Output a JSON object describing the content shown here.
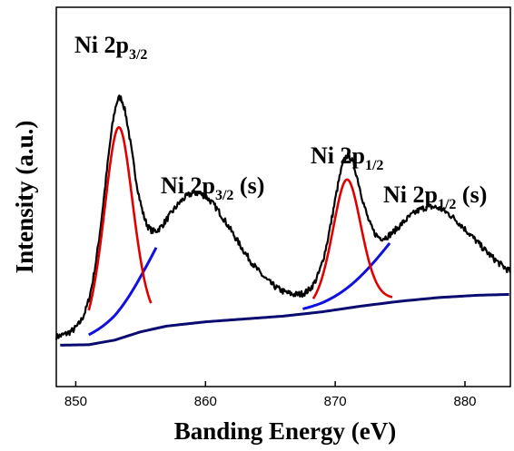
{
  "chart_data": {
    "type": "line",
    "xlabel": "Banding Energy (eV)",
    "ylabel": "Intensity (a.u.)",
    "xlim": [
      848.5,
      883.5
    ],
    "ylim": [
      0,
      1
    ],
    "y_ticks_shown": false,
    "grid": false,
    "legend": "none",
    "x_ticks": [
      850,
      860,
      870,
      880
    ],
    "colors": {
      "measured": "#000000",
      "fit": "#e00000",
      "satellite": "#1010e0",
      "background": "#0a0a70"
    },
    "peaks": [
      {
        "center": 853.3,
        "height": 0.74,
        "width": 1.15
      },
      {
        "center": 859.2,
        "height": 0.44,
        "width": 3.3
      },
      {
        "center": 870.9,
        "height": 0.45,
        "width": 1.15
      },
      {
        "center": 877.3,
        "height": 0.31,
        "width": 3.6
      }
    ],
    "background_curve": {
      "x": [
        848.5,
        851,
        853,
        855,
        857,
        860,
        863,
        866,
        869,
        872,
        875,
        878,
        881,
        883.5
      ],
      "y": [
        0.008,
        0.01,
        0.026,
        0.055,
        0.075,
        0.09,
        0.1,
        0.11,
        0.125,
        0.145,
        0.162,
        0.175,
        0.183,
        0.186
      ]
    },
    "annotations": [
      {
        "main": "Ni 2p",
        "sub": "3/2",
        "suffix": "",
        "x": 853.3
      },
      {
        "main": "Ni 2p",
        "sub": "3/2",
        "suffix": " (s)",
        "x": 859.2
      },
      {
        "main": "Ni 2p",
        "sub": "1/2",
        "suffix": "",
        "x": 870.9
      },
      {
        "main": "Ni 2p",
        "sub": "1/2",
        "suffix": " (s)",
        "x": 877.3
      }
    ]
  }
}
